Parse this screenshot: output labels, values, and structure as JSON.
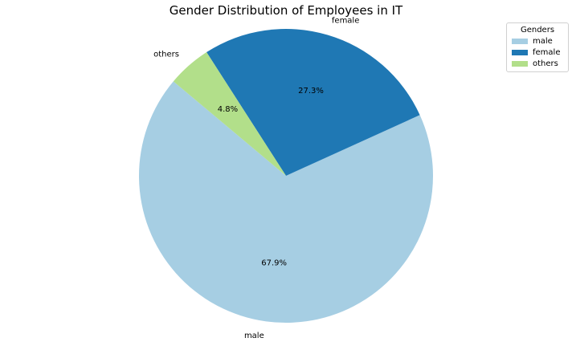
{
  "chart_data": {
    "type": "pie",
    "title": "Gender Distribution of Employees in IT",
    "slices": [
      {
        "label": "male",
        "value": 67.9,
        "pct_label": "67.9%",
        "color": "#a6cee3"
      },
      {
        "label": "female",
        "value": 27.3,
        "pct_label": "27.3%",
        "color": "#1f78b4"
      },
      {
        "label": "others",
        "value": 4.8,
        "pct_label": "4.8%",
        "color": "#b2df8a"
      }
    ],
    "start_angle_deg": 140,
    "direction": "counterclockwise",
    "legend": {
      "title": "Genders",
      "placement": "top-right",
      "entries": [
        "male",
        "female",
        "others"
      ]
    }
  }
}
